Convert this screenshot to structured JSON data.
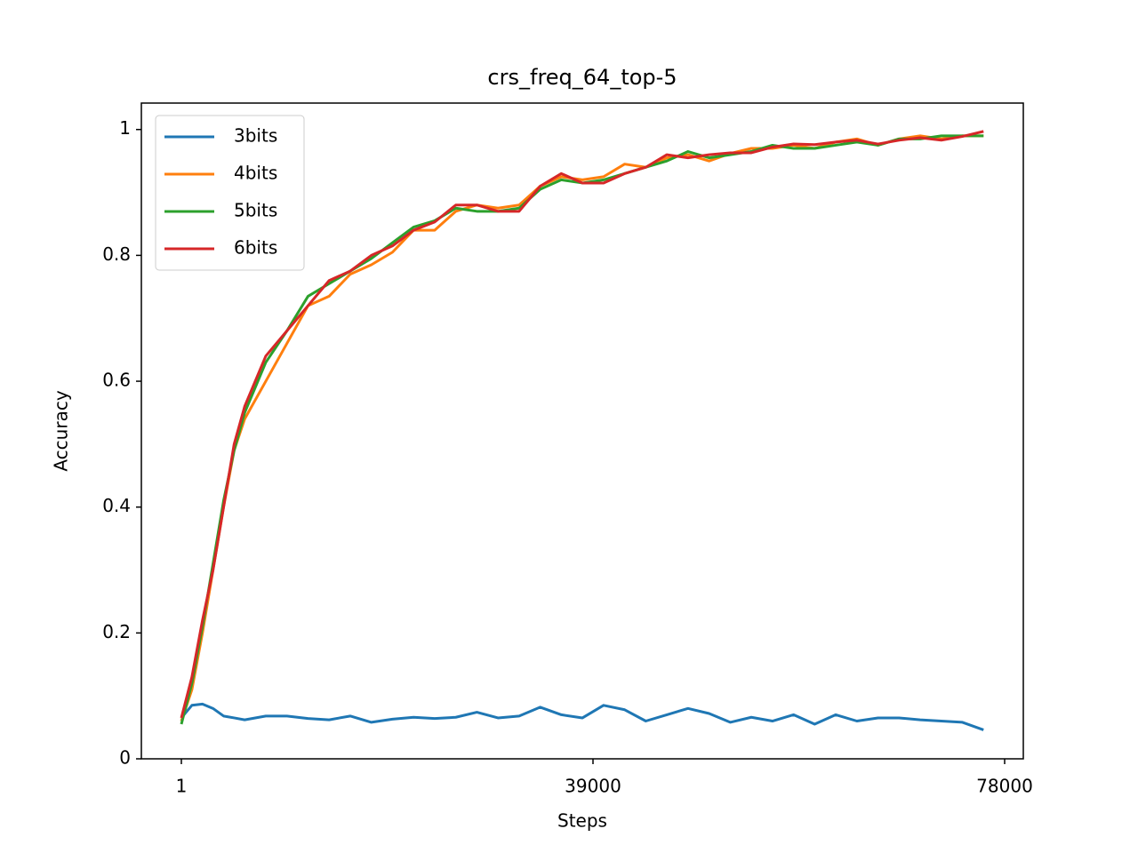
{
  "chart_data": {
    "type": "line",
    "title": "crs_freq_64_top-5",
    "xlabel": "Steps",
    "ylabel": "Accuracy",
    "x": [
      1,
      1000,
      2000,
      3000,
      4000,
      5000,
      6000,
      8000,
      10000,
      12000,
      14000,
      16000,
      18000,
      20000,
      22000,
      24000,
      26000,
      28000,
      30000,
      32000,
      34000,
      36000,
      38000,
      40000,
      42000,
      44000,
      46000,
      48000,
      50000,
      52000,
      54000,
      56000,
      58000,
      60000,
      62000,
      64000,
      66000,
      68000,
      70000,
      72000,
      74000,
      76000
    ],
    "series": [
      {
        "name": "3bits",
        "color": "#1f77b4",
        "values": [
          0.065,
          0.085,
          0.087,
          0.08,
          0.068,
          0.065,
          0.062,
          0.068,
          0.068,
          0.064,
          0.062,
          0.068,
          0.058,
          0.063,
          0.066,
          0.064,
          0.066,
          0.074,
          0.065,
          0.068,
          0.082,
          0.07,
          0.065,
          0.085,
          0.078,
          0.06,
          0.07,
          0.08,
          0.072,
          0.058,
          0.066,
          0.06,
          0.07,
          0.055,
          0.07,
          0.06,
          0.065,
          0.065,
          0.062,
          0.06,
          0.058,
          0.046
        ]
      },
      {
        "name": "4bits",
        "color": "#ff7f0e",
        "values": [
          0.06,
          0.11,
          0.2,
          0.3,
          0.4,
          0.49,
          0.54,
          0.6,
          0.66,
          0.72,
          0.735,
          0.77,
          0.785,
          0.805,
          0.84,
          0.84,
          0.87,
          0.88,
          0.875,
          0.88,
          0.91,
          0.925,
          0.92,
          0.925,
          0.945,
          0.94,
          0.955,
          0.96,
          0.95,
          0.962,
          0.97,
          0.97,
          0.975,
          0.97,
          0.98,
          0.985,
          0.975,
          0.985,
          0.99,
          0.985,
          0.99,
          0.99
        ]
      },
      {
        "name": "5bits",
        "color": "#2ca02c",
        "values": [
          0.055,
          0.12,
          0.21,
          0.31,
          0.41,
          0.49,
          0.55,
          0.63,
          0.68,
          0.735,
          0.755,
          0.775,
          0.795,
          0.82,
          0.845,
          0.855,
          0.875,
          0.87,
          0.87,
          0.875,
          0.905,
          0.92,
          0.915,
          0.92,
          0.93,
          0.94,
          0.95,
          0.965,
          0.955,
          0.96,
          0.965,
          0.975,
          0.97,
          0.97,
          0.975,
          0.98,
          0.975,
          0.985,
          0.985,
          0.99,
          0.99,
          0.99
        ]
      },
      {
        "name": "6bits",
        "color": "#d62728",
        "values": [
          0.065,
          0.13,
          0.22,
          0.3,
          0.4,
          0.5,
          0.56,
          0.64,
          0.68,
          0.72,
          0.76,
          0.775,
          0.8,
          0.815,
          0.84,
          0.853,
          0.88,
          0.88,
          0.87,
          0.87,
          0.91,
          0.93,
          0.915,
          0.915,
          0.93,
          0.94,
          0.96,
          0.955,
          0.96,
          0.963,
          0.963,
          0.972,
          0.977,
          0.976,
          0.98,
          0.983,
          0.977,
          0.983,
          0.987,
          0.983,
          0.989,
          0.997
        ]
      }
    ],
    "xlim": [
      -3789,
      79769
    ],
    "xticks": [
      1,
      39000,
      78000
    ],
    "ylim": [
      0,
      1.042
    ],
    "yticks": [
      0.0,
      0.2,
      0.4,
      0.6,
      0.8,
      1.0
    ],
    "legend": "upper left",
    "grid": false
  }
}
